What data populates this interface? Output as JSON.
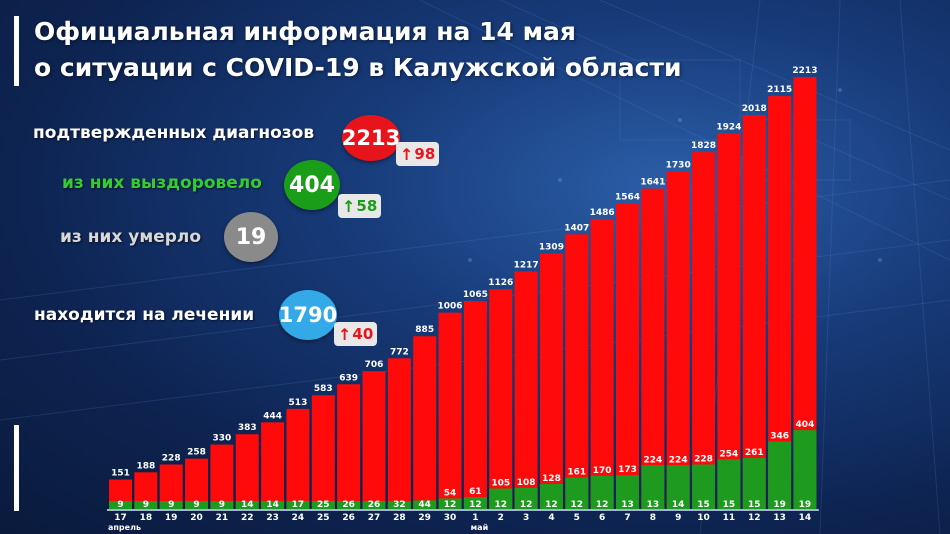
{
  "header": {
    "title_line1": "Официальная информация на 14 мая",
    "title_line2": "о ситуации с COVID-19 в Калужской области"
  },
  "stats": {
    "confirmed": {
      "label": "подтвержденных диагнозов",
      "value": "2213",
      "delta": "98",
      "color": "#e8141b"
    },
    "recovered": {
      "label": "из них выздоровело",
      "value": "404",
      "delta": "58",
      "color": "#1a9e1a"
    },
    "died": {
      "label": "из них умерло",
      "value": "19",
      "color": "#8a8a8a"
    },
    "treating": {
      "label": "находится на лечении",
      "value": "1790",
      "delta": "40",
      "color": "#33a9e8"
    }
  },
  "colors": {
    "bar_total": "#ff0a0a",
    "bar_recovered": "#1e9a1e",
    "text_white": "#ffffff",
    "recovered_label": "#33cc33",
    "delta_red": "#e8141b",
    "delta_green": "#1a9e1a"
  },
  "chart_data": {
    "type": "bar",
    "categories": [
      "17",
      "18",
      "19",
      "20",
      "21",
      "22",
      "23",
      "24",
      "25",
      "26",
      "27",
      "28",
      "29",
      "30",
      "1",
      "2",
      "3",
      "4",
      "5",
      "6",
      "7",
      "8",
      "9",
      "10",
      "11",
      "12",
      "13",
      "14"
    ],
    "month_labels": [
      {
        "text": "апрель",
        "at_index": 0
      },
      {
        "text": "май",
        "at_index": 14
      }
    ],
    "series": [
      {
        "values": [
          151,
          188,
          228,
          258,
          330,
          383,
          444,
          513,
          583,
          639,
          706,
          772,
          885,
          1006,
          1065,
          1126,
          1217,
          1309,
          1407,
          1486,
          1564,
          1641,
          1730,
          1828,
          1924,
          2018,
          2115,
          2213
        ]
      },
      {
        "values": [
          9,
          9,
          9,
          9,
          9,
          14,
          14,
          17,
          25,
          26,
          26,
          32,
          44,
          54,
          61,
          105,
          108,
          128,
          161,
          170,
          173,
          224,
          224,
          228,
          254,
          261,
          346,
          404
        ]
      },
      {
        "values": [
          null,
          null,
          null,
          null,
          null,
          null,
          null,
          null,
          null,
          null,
          null,
          null,
          null,
          12,
          12,
          12,
          12,
          12,
          12,
          12,
          13,
          13,
          14,
          15,
          15,
          15,
          19,
          19
        ]
      }
    ],
    "ylim": [
      0,
      2213
    ]
  }
}
